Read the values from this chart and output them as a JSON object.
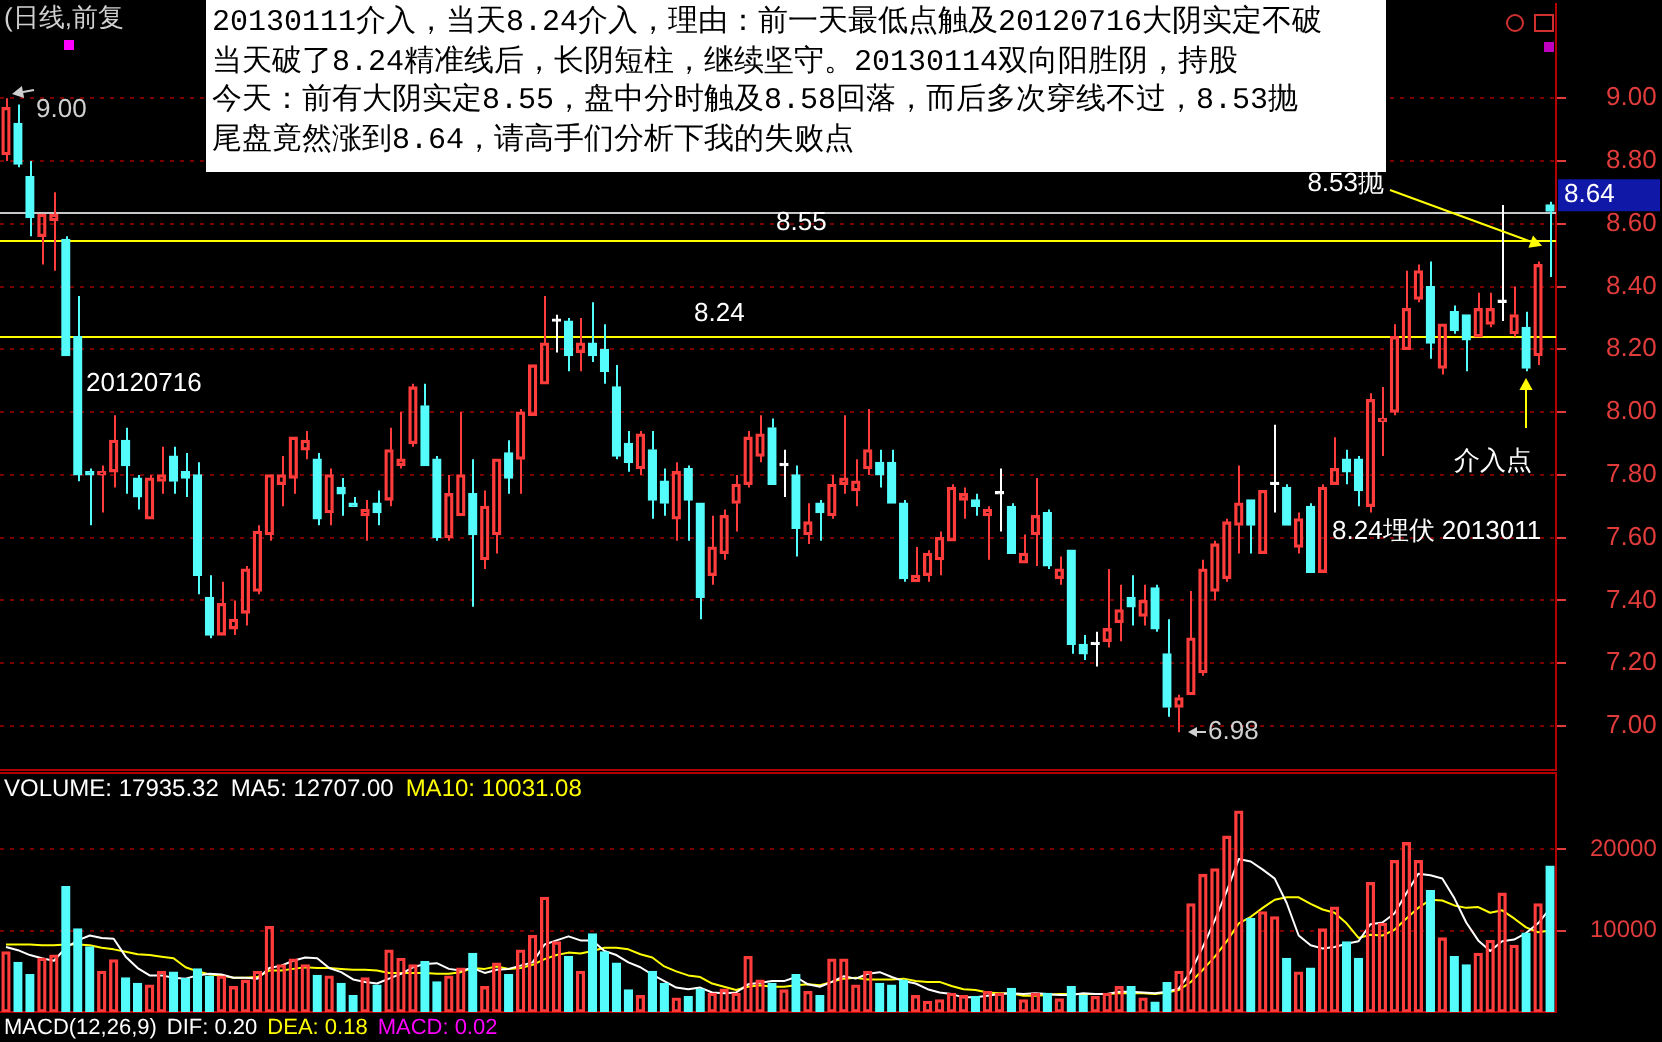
{
  "chart_data": [
    {
      "type": "candlestick",
      "title": "(日线,前复",
      "categories": [
        null,
        null,
        null,
        null,
        null,
        null,
        null,
        null,
        null,
        null,
        null,
        null,
        null,
        null,
        null,
        null,
        null,
        null,
        null,
        null,
        null,
        null,
        null,
        null,
        null,
        null,
        null,
        null,
        null,
        null,
        null,
        null,
        null,
        null,
        null,
        null,
        null,
        null,
        null,
        null,
        null,
        null,
        null,
        null,
        null,
        null,
        null,
        null,
        null,
        null,
        null,
        null,
        null,
        null,
        null,
        null,
        null,
        null,
        null,
        null,
        null,
        null,
        null,
        null,
        null,
        null,
        null,
        null,
        null,
        null,
        null,
        null,
        null,
        null,
        null,
        null,
        null,
        null,
        null,
        null,
        null,
        null,
        null,
        null,
        null,
        null,
        null,
        null,
        null,
        null,
        null,
        null,
        null,
        null,
        null,
        null,
        null,
        null,
        null,
        null,
        null,
        null,
        null,
        null,
        null,
        null,
        null,
        null,
        null,
        null,
        null,
        null,
        null,
        null,
        null,
        null,
        null,
        null,
        null,
        null,
        null,
        null,
        null,
        null,
        null,
        null,
        null,
        null,
        null,
        null
      ],
      "ohlc": [
        [
          8.82,
          9.0,
          8.8,
          8.97
        ],
        [
          8.92,
          8.98,
          8.78,
          8.79
        ],
        [
          8.75,
          8.8,
          8.56,
          8.62
        ],
        [
          8.56,
          8.63,
          8.47,
          8.63
        ],
        [
          8.61,
          8.7,
          8.45,
          8.63
        ],
        [
          8.55,
          8.56,
          8.18,
          8.18
        ],
        [
          8.24,
          8.37,
          7.78,
          7.8
        ],
        [
          7.81,
          7.82,
          7.64,
          7.8
        ],
        [
          7.8,
          7.83,
          7.68,
          7.81
        ],
        [
          7.81,
          7.99,
          7.76,
          7.91
        ],
        [
          7.91,
          7.95,
          7.74,
          7.83
        ],
        [
          7.79,
          7.8,
          7.69,
          7.73
        ],
        [
          7.66,
          7.8,
          7.66,
          7.79
        ],
        [
          7.78,
          7.89,
          7.74,
          7.8
        ],
        [
          7.86,
          7.89,
          7.74,
          7.78
        ],
        [
          7.81,
          7.87,
          7.73,
          7.79
        ],
        [
          7.8,
          7.84,
          7.42,
          7.48
        ],
        [
          7.41,
          7.48,
          7.28,
          7.29
        ],
        [
          7.29,
          7.46,
          7.29,
          7.39
        ],
        [
          7.31,
          7.4,
          7.29,
          7.34
        ],
        [
          7.36,
          7.51,
          7.32,
          7.5
        ],
        [
          7.43,
          7.64,
          7.42,
          7.62
        ],
        [
          7.61,
          7.8,
          7.59,
          7.8
        ],
        [
          7.77,
          7.86,
          7.7,
          7.8
        ],
        [
          7.79,
          7.92,
          7.74,
          7.92
        ],
        [
          7.88,
          7.94,
          7.85,
          7.91
        ],
        [
          7.85,
          7.87,
          7.64,
          7.66
        ],
        [
          7.68,
          7.82,
          7.64,
          7.8
        ],
        [
          7.76,
          7.79,
          7.67,
          7.74
        ],
        [
          7.71,
          7.73,
          7.7,
          7.7
        ],
        [
          7.67,
          7.72,
          7.59,
          7.69
        ],
        [
          7.71,
          7.75,
          7.64,
          7.68
        ],
        [
          7.72,
          7.95,
          7.7,
          7.88
        ],
        [
          7.83,
          8.0,
          7.82,
          7.85
        ],
        [
          7.9,
          8.09,
          7.89,
          8.08
        ],
        [
          8.02,
          8.09,
          7.83,
          7.83
        ],
        [
          7.85,
          7.86,
          7.59,
          7.6
        ],
        [
          7.6,
          7.8,
          7.59,
          7.74
        ],
        [
          7.67,
          8.0,
          7.67,
          7.8
        ],
        [
          7.74,
          7.85,
          7.38,
          7.61
        ],
        [
          7.53,
          7.75,
          7.5,
          7.7
        ],
        [
          7.61,
          7.85,
          7.55,
          7.85
        ],
        [
          7.87,
          7.91,
          7.74,
          7.79
        ],
        [
          7.85,
          8.01,
          7.74,
          8.0
        ],
        [
          7.99,
          8.15,
          7.99,
          8.15
        ],
        [
          8.09,
          8.37,
          8.09,
          8.22
        ],
        [
          8.29,
          8.31,
          8.19,
          8.29
        ],
        [
          8.29,
          8.3,
          8.13,
          8.18
        ],
        [
          8.19,
          8.3,
          8.13,
          8.22
        ],
        [
          8.22,
          8.35,
          8.16,
          8.18
        ],
        [
          8.2,
          8.28,
          8.09,
          8.13
        ],
        [
          8.08,
          8.15,
          7.85,
          7.86
        ],
        [
          7.9,
          7.94,
          7.81,
          7.84
        ],
        [
          7.82,
          7.94,
          7.8,
          7.93
        ],
        [
          7.88,
          7.94,
          7.66,
          7.72
        ],
        [
          7.78,
          7.82,
          7.67,
          7.71
        ],
        [
          7.66,
          7.84,
          7.59,
          7.81
        ],
        [
          7.82,
          7.83,
          7.59,
          7.72
        ],
        [
          7.71,
          7.71,
          7.34,
          7.41
        ],
        [
          7.48,
          7.67,
          7.45,
          7.57
        ],
        [
          7.55,
          7.69,
          7.53,
          7.67
        ],
        [
          7.71,
          7.8,
          7.62,
          7.77
        ],
        [
          7.77,
          7.94,
          7.76,
          7.92
        ],
        [
          7.86,
          7.99,
          7.84,
          7.93
        ],
        [
          7.95,
          7.98,
          7.77,
          7.77
        ],
        [
          7.83,
          7.88,
          7.73,
          7.83
        ],
        [
          7.8,
          7.83,
          7.54,
          7.63
        ],
        [
          7.61,
          7.71,
          7.58,
          7.65
        ],
        [
          7.71,
          7.72,
          7.59,
          7.68
        ],
        [
          7.67,
          7.8,
          7.66,
          7.77
        ],
        [
          7.77,
          7.99,
          7.74,
          7.79
        ],
        [
          7.75,
          7.85,
          7.7,
          7.78
        ],
        [
          7.82,
          8.01,
          7.8,
          7.88
        ],
        [
          7.84,
          7.88,
          7.76,
          7.8
        ],
        [
          7.84,
          7.88,
          7.71,
          7.71
        ],
        [
          7.71,
          7.72,
          7.46,
          7.47
        ],
        [
          7.46,
          7.57,
          7.46,
          7.48
        ],
        [
          7.48,
          7.56,
          7.46,
          7.55
        ],
        [
          7.53,
          7.62,
          7.48,
          7.6
        ],
        [
          7.59,
          7.77,
          7.59,
          7.76
        ],
        [
          7.72,
          7.76,
          7.66,
          7.74
        ],
        [
          7.72,
          7.74,
          7.67,
          7.7
        ],
        [
          7.67,
          7.7,
          7.53,
          7.69
        ],
        [
          7.74,
          7.82,
          7.62,
          7.74
        ],
        [
          7.7,
          7.71,
          7.55,
          7.55
        ],
        [
          7.52,
          7.61,
          7.52,
          7.55
        ],
        [
          7.61,
          7.79,
          7.51,
          7.67
        ],
        [
          7.68,
          7.69,
          7.5,
          7.51
        ],
        [
          7.47,
          7.54,
          7.45,
          7.5
        ],
        [
          7.56,
          7.56,
          7.23,
          7.26
        ],
        [
          7.26,
          7.29,
          7.21,
          7.23
        ],
        [
          7.26,
          7.3,
          7.19,
          7.26
        ],
        [
          7.27,
          7.5,
          7.25,
          7.31
        ],
        [
          7.33,
          7.45,
          7.27,
          7.37
        ],
        [
          7.41,
          7.48,
          7.32,
          7.38
        ],
        [
          7.35,
          7.45,
          7.32,
          7.4
        ],
        [
          7.44,
          7.45,
          7.3,
          7.31
        ],
        [
          7.23,
          7.34,
          7.03,
          7.06
        ],
        [
          7.06,
          7.1,
          6.98,
          7.09
        ],
        [
          7.1,
          7.43,
          7.1,
          7.28
        ],
        [
          7.17,
          7.53,
          7.16,
          7.5
        ],
        [
          7.43,
          7.59,
          7.4,
          7.58
        ],
        [
          7.47,
          7.66,
          7.46,
          7.65
        ],
        [
          7.64,
          7.83,
          7.55,
          7.71
        ],
        [
          7.72,
          7.72,
          7.55,
          7.64
        ],
        [
          7.55,
          7.75,
          7.55,
          7.75
        ],
        [
          7.77,
          7.96,
          7.68,
          7.77
        ],
        [
          7.76,
          7.77,
          7.64,
          7.64
        ],
        [
          7.57,
          7.68,
          7.55,
          7.66
        ],
        [
          7.7,
          7.71,
          7.49,
          7.49
        ],
        [
          7.49,
          7.77,
          7.49,
          7.76
        ],
        [
          7.77,
          7.92,
          7.77,
          7.82
        ],
        [
          7.85,
          7.88,
          7.77,
          7.81
        ],
        [
          7.85,
          7.86,
          7.7,
          7.75
        ],
        [
          7.7,
          8.06,
          7.68,
          8.04
        ],
        [
          7.97,
          8.08,
          7.86,
          7.98
        ],
        [
          8.0,
          8.28,
          7.99,
          8.24
        ],
        [
          8.2,
          8.45,
          8.2,
          8.33
        ],
        [
          8.36,
          8.47,
          8.35,
          8.45
        ],
        [
          8.4,
          8.48,
          8.17,
          8.22
        ],
        [
          8.14,
          8.28,
          8.12,
          8.28
        ],
        [
          8.32,
          8.34,
          8.25,
          8.26
        ],
        [
          8.31,
          8.31,
          8.13,
          8.23
        ],
        [
          8.24,
          8.38,
          8.24,
          8.33
        ],
        [
          8.28,
          8.38,
          8.27,
          8.33
        ],
        [
          8.35,
          8.66,
          8.29,
          8.35
        ],
        [
          8.25,
          8.4,
          8.24,
          8.31
        ],
        [
          8.27,
          8.32,
          8.13,
          8.14
        ],
        [
          8.18,
          8.48,
          8.15,
          8.47
        ],
        [
          8.66,
          8.67,
          8.43,
          8.64
        ]
      ],
      "colors": [
        "#ff3c3c",
        "#54fcfc",
        "#54fcfc",
        "#ff3c3c",
        "#ff3c3c",
        "#54fcfc",
        "#54fcfc",
        "#54fcfc",
        "#ff3c3c",
        "#ff3c3c",
        "#54fcfc",
        "#54fcfc",
        "#ff3c3c",
        "#ff3c3c",
        "#54fcfc",
        "#54fcfc",
        "#54fcfc",
        "#54fcfc",
        "#ff3c3c",
        "#ff3c3c",
        "#ff3c3c",
        "#ff3c3c",
        "#ff3c3c",
        "#ff3c3c",
        "#ff3c3c",
        "#ff3c3c",
        "#54fcfc",
        "#ff3c3c",
        "#54fcfc",
        "#54fcfc",
        "#ff3c3c",
        "#54fcfc",
        "#ff3c3c",
        "#ff3c3c",
        "#ff3c3c",
        "#54fcfc",
        "#54fcfc",
        "#ff3c3c",
        "#ff3c3c",
        "#54fcfc",
        "#ff3c3c",
        "#ff3c3c",
        "#54fcfc",
        "#ff3c3c",
        "#ff3c3c",
        "#ff3c3c",
        "#ffffff",
        "#54fcfc",
        "#ff3c3c",
        "#54fcfc",
        "#54fcfc",
        "#54fcfc",
        "#54fcfc",
        "#ff3c3c",
        "#54fcfc",
        "#54fcfc",
        "#ff3c3c",
        "#54fcfc",
        "#54fcfc",
        "#ff3c3c",
        "#ff3c3c",
        "#ff3c3c",
        "#ff3c3c",
        "#ff3c3c",
        "#54fcfc",
        "#ffffff",
        "#54fcfc",
        "#ff3c3c",
        "#54fcfc",
        "#ff3c3c",
        "#ff3c3c",
        "#ff3c3c",
        "#ff3c3c",
        "#54fcfc",
        "#54fcfc",
        "#54fcfc",
        "#ff3c3c",
        "#ff3c3c",
        "#ff3c3c",
        "#ff3c3c",
        "#ff3c3c",
        "#54fcfc",
        "#ff3c3c",
        "#ffffff",
        "#54fcfc",
        "#ff3c3c",
        "#ff3c3c",
        "#54fcfc",
        "#ff3c3c",
        "#54fcfc",
        "#54fcfc",
        "#ffffff",
        "#ff3c3c",
        "#ff3c3c",
        "#54fcfc",
        "#ff3c3c",
        "#54fcfc",
        "#54fcfc",
        "#ff3c3c",
        "#ff3c3c",
        "#ff3c3c",
        "#ff3c3c",
        "#ff3c3c",
        "#ff3c3c",
        "#54fcfc",
        "#ff3c3c",
        "#ffffff",
        "#54fcfc",
        "#ff3c3c",
        "#54fcfc",
        "#ff3c3c",
        "#ff3c3c",
        "#54fcfc",
        "#54fcfc",
        "#ff3c3c",
        "#ff3c3c",
        "#ff3c3c",
        "#ff3c3c",
        "#ff3c3c",
        "#54fcfc",
        "#ff3c3c",
        "#54fcfc",
        "#54fcfc",
        "#ff3c3c",
        "#ff3c3c",
        "#ffffff",
        "#ff3c3c",
        "#54fcfc",
        "#ff3c3c",
        "#54fcfc"
      ],
      "ylim": [
        6.86,
        9.3
      ],
      "yticks": [
        {
          "value": 7,
          "label": "7.00"
        },
        {
          "value": 7.2,
          "label": "7.20"
        },
        {
          "value": 7.4,
          "label": "7.40"
        },
        {
          "value": 7.6,
          "label": "7.60"
        },
        {
          "value": 7.8,
          "label": "7.80"
        },
        {
          "value": 8,
          "label": "8.00"
        },
        {
          "value": 8.2,
          "label": "8.20"
        },
        {
          "value": 8.4,
          "label": "8.40"
        },
        {
          "value": 8.6,
          "label": "8.60"
        },
        {
          "value": 8.8,
          "label": "8.80"
        },
        {
          "value": 9,
          "label": "9.00"
        }
      ],
      "grid": "y",
      "tick_labels": "y",
      "ref_lines": [
        {
          "axis": "y",
          "value": 8.64,
          "label": "8.64",
          "color": "#c8c8c8"
        },
        {
          "axis": "y",
          "value": 8.55,
          "label": "8.55",
          "color": "#ffff00"
        },
        {
          "axis": "y",
          "value": 8.24,
          "label": "8.24",
          "color": "#ffff00"
        }
      ],
      "annotations": [
        "20130111介入，当天8.24介入，理由：前一天最低点触及20120716大阴实定不破",
        "当天破了8.24精准线后，长阴短柱，继续坚守。20130114双向阳胜阴，持股",
        "今天：前有大阴实定8.55，盘中分时触及8.58回落，而后多次穿线不过，8.53抛",
        "尾盘竟然涨到8.64，请高手们分析下我的失败点",
        "9.00",
        "20120716",
        {
          "text": "8.53抛",
          "y": 8.53
        },
        "6.98",
        "介入点",
        "8.24埋伏 2013011"
      ]
    },
    {
      "type": "bar",
      "categories": [
        null,
        null,
        null,
        null,
        null,
        null,
        null,
        null,
        null,
        null,
        null,
        null,
        null,
        null,
        null,
        null,
        null,
        null,
        null,
        null,
        null,
        null,
        null,
        null,
        null,
        null,
        null,
        null,
        null,
        null,
        null,
        null,
        null,
        null,
        null,
        null,
        null,
        null,
        null,
        null,
        null,
        null,
        null,
        null,
        null,
        null,
        null,
        null,
        null,
        null,
        null,
        null,
        null,
        null,
        null,
        null,
        null,
        null,
        null,
        null,
        null,
        null,
        null,
        null,
        null,
        null,
        null,
        null,
        null,
        null,
        null,
        null,
        null,
        null,
        null,
        null,
        null,
        null,
        null,
        null,
        null,
        null,
        null,
        null,
        null,
        null,
        null,
        null,
        null,
        null,
        null,
        null,
        null,
        null,
        null,
        null,
        null,
        null,
        null,
        null,
        null,
        null,
        null,
        null,
        null,
        null,
        null,
        null,
        null,
        null,
        null,
        null,
        null,
        null,
        null,
        null,
        null,
        null,
        null,
        null,
        null,
        null,
        null,
        null,
        null,
        null,
        null,
        null,
        null,
        null
      ],
      "series": [
        {
          "colors": [
            "#ff3c3c",
            "#54fcfc",
            "#54fcfc",
            "#ff3c3c",
            "#ff3c3c",
            "#54fcfc",
            "#54fcfc",
            "#54fcfc",
            "#ff3c3c",
            "#ff3c3c",
            "#54fcfc",
            "#54fcfc",
            "#ff3c3c",
            "#ff3c3c",
            "#54fcfc",
            "#54fcfc",
            "#54fcfc",
            "#54fcfc",
            "#ff3c3c",
            "#ff3c3c",
            "#ff3c3c",
            "#ff3c3c",
            "#ff3c3c",
            "#ff3c3c",
            "#ff3c3c",
            "#ff3c3c",
            "#54fcfc",
            "#ff3c3c",
            "#54fcfc",
            "#54fcfc",
            "#ff3c3c",
            "#54fcfc",
            "#ff3c3c",
            "#ff3c3c",
            "#ff3c3c",
            "#54fcfc",
            "#54fcfc",
            "#ff3c3c",
            "#ff3c3c",
            "#54fcfc",
            "#ff3c3c",
            "#ff3c3c",
            "#54fcfc",
            "#ff3c3c",
            "#ff3c3c",
            "#ff3c3c",
            "#ff3c3c",
            "#54fcfc",
            "#ff3c3c",
            "#54fcfc",
            "#54fcfc",
            "#54fcfc",
            "#54fcfc",
            "#ff3c3c",
            "#54fcfc",
            "#54fcfc",
            "#ff3c3c",
            "#54fcfc",
            "#54fcfc",
            "#ff3c3c",
            "#ff3c3c",
            "#ff3c3c",
            "#ff3c3c",
            "#ff3c3c",
            "#54fcfc",
            "#ff3c3c",
            "#54fcfc",
            "#ff3c3c",
            "#54fcfc",
            "#ff3c3c",
            "#ff3c3c",
            "#ff3c3c",
            "#ff3c3c",
            "#54fcfc",
            "#54fcfc",
            "#54fcfc",
            "#ff3c3c",
            "#ff3c3c",
            "#ff3c3c",
            "#ff3c3c",
            "#ff3c3c",
            "#54fcfc",
            "#ff3c3c",
            "#ff3c3c",
            "#54fcfc",
            "#ff3c3c",
            "#ff3c3c",
            "#54fcfc",
            "#ff3c3c",
            "#54fcfc",
            "#54fcfc",
            "#ff3c3c",
            "#ff3c3c",
            "#ff3c3c",
            "#54fcfc",
            "#ff3c3c",
            "#54fcfc",
            "#54fcfc",
            "#ff3c3c",
            "#ff3c3c",
            "#ff3c3c",
            "#ff3c3c",
            "#ff3c3c",
            "#ff3c3c",
            "#54fcfc",
            "#ff3c3c",
            "#ff3c3c",
            "#54fcfc",
            "#ff3c3c",
            "#54fcfc",
            "#ff3c3c",
            "#ff3c3c",
            "#54fcfc",
            "#54fcfc",
            "#ff3c3c",
            "#ff3c3c",
            "#ff3c3c",
            "#ff3c3c",
            "#ff3c3c",
            "#54fcfc",
            "#ff3c3c",
            "#54fcfc",
            "#54fcfc",
            "#ff3c3c",
            "#ff3c3c",
            "#ff3c3c",
            "#ff3c3c",
            "#54fcfc",
            "#ff3c3c",
            "#54fcfc"
          ],
          "values": [
            7400,
            6100,
            4600,
            6600,
            7000,
            15400,
            10200,
            8000,
            5000,
            6400,
            4200,
            3500,
            3300,
            5000,
            4900,
            4100,
            5300,
            4400,
            4400,
            3100,
            3900,
            5000,
            10500,
            5800,
            6500,
            5800,
            4500,
            4400,
            3500,
            2000,
            4200,
            3300,
            7600,
            6600,
            5800,
            6200,
            3700,
            4400,
            5400,
            7200,
            3100,
            6000,
            4600,
            7600,
            9400,
            14100,
            8600,
            6800,
            5000,
            9600,
            7400,
            6000,
            2700,
            2000,
            5000,
            3500,
            1700,
            1900,
            2800,
            2300,
            2800,
            2300,
            6800,
            3900,
            3500,
            2700,
            4600,
            2500,
            2000,
            6500,
            6500,
            3300,
            5000,
            3500,
            3300,
            3900,
            2000,
            1300,
            1500,
            2300,
            2000,
            1900,
            2500,
            2300,
            2900,
            1500,
            2300,
            2300,
            1600,
            3100,
            2000,
            1900,
            2300,
            3100,
            3100,
            1700,
            1200,
            3600,
            5000,
            13300,
            16900,
            17600,
            21600,
            24700,
            11500,
            12300,
            11700,
            6600,
            4900,
            5400,
            10200,
            12900,
            8600,
            6600,
            15900,
            10900,
            18600,
            20800,
            18600,
            14900,
            9100,
            6800,
            5800,
            7200,
            8800,
            14600,
            8200,
            9700,
            13300,
            17935.32
          ]
        },
        {
          "name": "MA5: 12707.00",
          "type": "line",
          "color": "#ffffff",
          "values": [
            8000,
            7600,
            7000,
            6600,
            6300,
            7900,
            8800,
            9400,
            9100,
            9000,
            6800,
            5400,
            4500,
            4500,
            4200,
            4100,
            4500,
            4700,
            4600,
            4200,
            4200,
            4100,
            5400,
            5700,
            6300,
            6700,
            6600,
            5400,
            4900,
            4000,
            3700,
            3500,
            4100,
            4700,
            5500,
            5900,
            6000,
            5300,
            5100,
            5400,
            4800,
            5200,
            5300,
            5700,
            6100,
            8300,
            8800,
            9300,
            8800,
            8800,
            7500,
            7000,
            6100,
            5500,
            4600,
            3800,
            3000,
            2800,
            3000,
            2400,
            2300,
            2400,
            3400,
            3600,
            3800,
            3800,
            4300,
            3400,
            3100,
            3700,
            4400,
            4100,
            4700,
            4900,
            4300,
            3800,
            3500,
            2800,
            2400,
            2200,
            1800,
            1800,
            2000,
            2200,
            2300,
            2200,
            2300,
            2200,
            2100,
            2100,
            2300,
            2200,
            2200,
            2500,
            2500,
            2400,
            2300,
            2500,
            2900,
            5000,
            8000,
            11300,
            14900,
            18800,
            18500,
            17500,
            16400,
            13400,
            9400,
            8200,
            7800,
            8000,
            8400,
            8700,
            10800,
            11000,
            12100,
            14600,
            17000,
            16800,
            16400,
            14000,
            11000,
            8800,
            7500,
            8700,
            8900,
            9700,
            10900,
            12707
          ]
        },
        {
          "name": "MA10: 10031.08",
          "type": "line",
          "color": "#ffff00",
          "values": [
            8300,
            8300,
            8300,
            8200,
            8200,
            8300,
            8300,
            8200,
            7900,
            7700,
            7400,
            7100,
            7000,
            6800,
            6600,
            5500,
            5000,
            4600,
            4500,
            4200,
            4200,
            4300,
            5100,
            5100,
            5300,
            5500,
            5400,
            5400,
            5300,
            5200,
            5200,
            5100,
            4800,
            4800,
            4800,
            4800,
            4700,
            4700,
            4900,
            5400,
            5300,
            5600,
            5300,
            5400,
            5800,
            6500,
            7000,
            7300,
            7200,
            7500,
            7900,
            7900,
            7700,
            7100,
            6700,
            5600,
            5000,
            4500,
            4300,
            3500,
            3100,
            2700,
            3100,
            3300,
            3100,
            3100,
            3300,
            3400,
            3300,
            3700,
            4100,
            4200,
            4000,
            4000,
            4000,
            4100,
            3800,
            3700,
            3700,
            3200,
            2800,
            2700,
            2400,
            2300,
            2300,
            2000,
            2000,
            2100,
            2200,
            2200,
            2200,
            2200,
            2200,
            2300,
            2300,
            2300,
            2200,
            2400,
            2700,
            3700,
            5200,
            6800,
            8700,
            10900,
            11700,
            12800,
            13800,
            14100,
            14100,
            13300,
            12600,
            12200,
            10900,
            9100,
            9500,
            9400,
            10100,
            11500,
            12800,
            13800,
            13700,
            13100,
            12800,
            12900,
            12200,
            12500,
            11500,
            10400,
            9800,
            10031.08
          ]
        }
      ],
      "ylim": [
        0,
        29500
      ],
      "yticks": [
        10000,
        20000
      ],
      "grid": "y",
      "tick_labels": "y",
      "annotations": [
        "VOLUME: 17935.32"
      ]
    },
    {
      "type": "other",
      "title": "MACD(12,26,9)",
      "annotations": [
        "DIF: 0.20",
        "DEA: 0.18",
        "MACD: 0.02"
      ]
    }
  ]
}
